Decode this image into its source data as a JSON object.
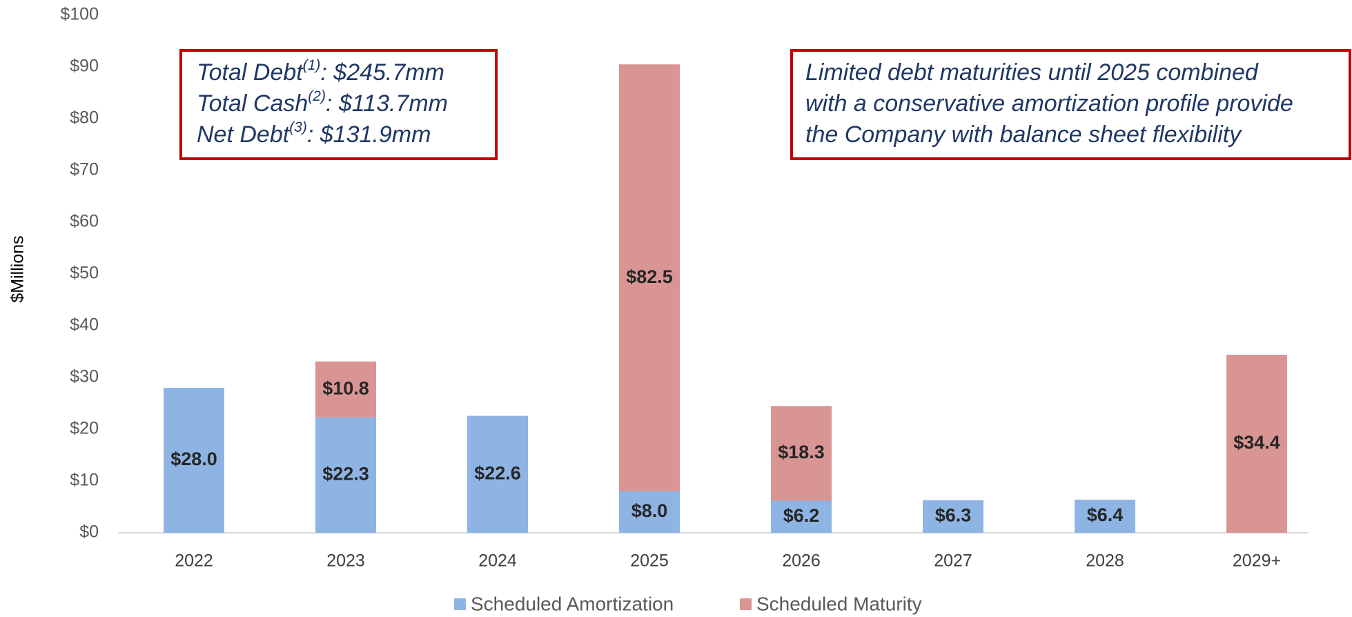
{
  "chart_data": {
    "type": "stacked_bar",
    "ylabel": "$Millions",
    "categories": [
      "2022",
      "2023",
      "2024",
      "2025",
      "2026",
      "2027",
      "2028",
      "2029+"
    ],
    "series": [
      {
        "name": "Scheduled Amortization",
        "color": "#8eb4e3",
        "values": [
          28.0,
          22.3,
          22.6,
          8.0,
          6.2,
          6.3,
          6.4,
          null
        ],
        "value_labels": [
          "$28.0",
          "$22.3",
          "$22.6",
          "$8.0",
          "$6.2",
          "$6.3",
          "$6.4",
          null
        ]
      },
      {
        "name": "Scheduled Maturity",
        "color": "#d99594",
        "values": [
          null,
          10.8,
          null,
          82.5,
          18.3,
          null,
          null,
          34.4
        ],
        "value_labels": [
          null,
          "$10.8",
          null,
          "$82.5",
          "$18.3",
          null,
          null,
          "$34.4"
        ]
      }
    ],
    "ylim": [
      0,
      100
    ],
    "yticks": [
      {
        "value": 0,
        "label": "$0"
      },
      {
        "value": 10,
        "label": "$10"
      },
      {
        "value": 20,
        "label": "$20"
      },
      {
        "value": 30,
        "label": "$30"
      },
      {
        "value": 40,
        "label": "$40"
      },
      {
        "value": 50,
        "label": "$50"
      },
      {
        "value": 60,
        "label": "$60"
      },
      {
        "value": 70,
        "label": "$70"
      },
      {
        "value": 80,
        "label": "$80"
      },
      {
        "value": 90,
        "label": "$90"
      },
      {
        "value": 100,
        "label": "$100"
      }
    ],
    "legend": "bottom",
    "annotations": [
      {
        "lines": [
          {
            "text": "Total Debt",
            "sup": "(1)",
            "rest": ": $245.7mm"
          },
          {
            "text": "Total Cash",
            "sup": "(2)",
            "rest": ": $113.7mm"
          },
          {
            "text": "Net Debt",
            "sup": "(3)",
            "rest": ": $131.9mm"
          }
        ]
      },
      {
        "lines": [
          {
            "text": "Limited debt maturities until 2025 combined"
          },
          {
            "text": "with a conservative amortization profile provide"
          },
          {
            "text": "the Company with balance sheet flexibility"
          }
        ]
      }
    ]
  }
}
